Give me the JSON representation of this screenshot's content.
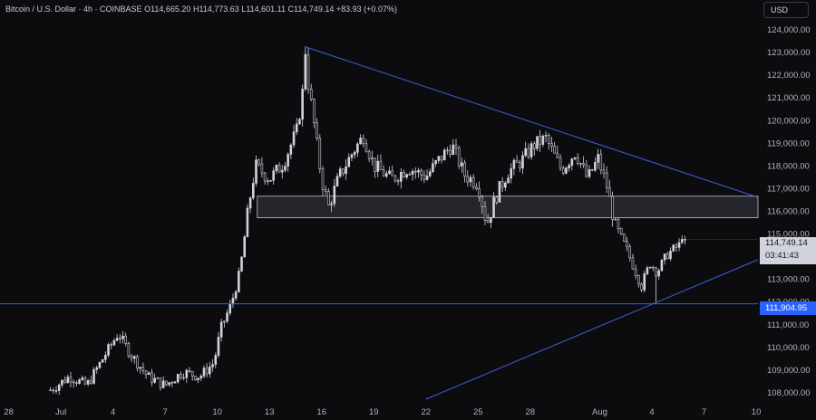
{
  "header": {
    "symbol": "Bitcoin / U.S. Dollar · 4h · COINBASE",
    "ohlc": "O114,665.20 H114,773.63 L114,601.11 C114,749.14 +83.93 (+0.07%)"
  },
  "currency_label": "USD",
  "current_price": "114,749.14",
  "countdown": "03:41:43",
  "support_level_label": "111,904.95",
  "colors": {
    "background": "#0c0c0f",
    "candle": "#d1d4dc",
    "trendline": "#3f5fd8",
    "support_line": "#2962ff",
    "zone_fill": "#2a2c33",
    "zone_border": "#c0c3cc",
    "axis_text": "#b2b5be"
  },
  "chart_data": {
    "type": "candlestick",
    "y_tick_labels": [
      "108,000.00",
      "109,000.00",
      "110,000.00",
      "111,000.00",
      "112,000.00",
      "113,000.00",
      "114,000.00",
      "115,000.00",
      "116,000.00",
      "117,000.00",
      "118,000.00",
      "119,000.00",
      "120,000.00",
      "121,000.00",
      "122,000.00",
      "123,000.00",
      "124,000.00"
    ],
    "y_tick_values": [
      108000,
      109000,
      110000,
      111000,
      112000,
      113000,
      114000,
      115000,
      116000,
      117000,
      118000,
      119000,
      120000,
      121000,
      122000,
      123000,
      124000
    ],
    "x_tick_labels": [
      "28",
      "Jul",
      "4",
      "7",
      "10",
      "13",
      "16",
      "19",
      "22",
      "25",
      "28",
      "Aug",
      "4",
      "7",
      "10"
    ],
    "x_tick_days": [
      -3,
      0,
      3,
      6,
      9,
      12,
      15,
      18,
      21,
      24,
      27,
      31,
      34,
      37,
      40
    ],
    "ylim": [
      107500,
      125300
    ],
    "xlim_days": [
      -3.5,
      40.1
    ],
    "price_anchors": [
      [
        -0.6,
        108100
      ],
      [
        0.5,
        108700
      ],
      [
        1.5,
        108300
      ],
      [
        2.5,
        109600
      ],
      [
        3.3,
        110600
      ],
      [
        4.0,
        109700
      ],
      [
        5.0,
        108700
      ],
      [
        6.0,
        108300
      ],
      [
        7.0,
        108900
      ],
      [
        8.0,
        108700
      ],
      [
        8.8,
        109300
      ],
      [
        9.2,
        110800
      ],
      [
        9.8,
        111900
      ],
      [
        10.3,
        113300
      ],
      [
        10.8,
        116200
      ],
      [
        11.2,
        118000
      ],
      [
        12.0,
        117400
      ],
      [
        12.8,
        118100
      ],
      [
        13.6,
        119600
      ],
      [
        14.1,
        122300
      ],
      [
        14.5,
        120200
      ],
      [
        15.0,
        117400
      ],
      [
        15.4,
        116200
      ],
      [
        16.0,
        117500
      ],
      [
        16.8,
        118600
      ],
      [
        17.4,
        119300
      ],
      [
        18.0,
        118000
      ],
      [
        19.0,
        117400
      ],
      [
        20.0,
        117900
      ],
      [
        21.0,
        117500
      ],
      [
        21.8,
        118300
      ],
      [
        22.5,
        118900
      ],
      [
        23.2,
        117600
      ],
      [
        24.0,
        117200
      ],
      [
        24.5,
        115400
      ],
      [
        25.0,
        116600
      ],
      [
        25.7,
        117700
      ],
      [
        26.5,
        118200
      ],
      [
        27.2,
        118900
      ],
      [
        27.9,
        119200
      ],
      [
        28.8,
        117800
      ],
      [
        29.6,
        118600
      ],
      [
        30.3,
        117400
      ],
      [
        30.9,
        118300
      ],
      [
        31.4,
        117100
      ],
      [
        31.9,
        115300
      ],
      [
        32.6,
        114200
      ],
      [
        33.4,
        112700
      ],
      [
        33.9,
        113700
      ],
      [
        34.3,
        113300
      ],
      [
        34.9,
        114100
      ],
      [
        35.6,
        114500
      ],
      [
        35.9,
        114749.14
      ]
    ],
    "swing_high": 123200,
    "swing_high_day": 14.0,
    "swing_low": 111920,
    "swing_low_day": 34.2,
    "zone": {
      "low": 115700,
      "high": 116650,
      "from_day": 11.3
    },
    "support_level": 111904.95,
    "trendlines": [
      {
        "from": [
          14.0,
          123250
        ],
        "to": [
          40.1,
          116600
        ]
      },
      {
        "from": [
          21.0,
          107700
        ],
        "to": [
          40.1,
          113850
        ]
      }
    ],
    "grid": false
  }
}
